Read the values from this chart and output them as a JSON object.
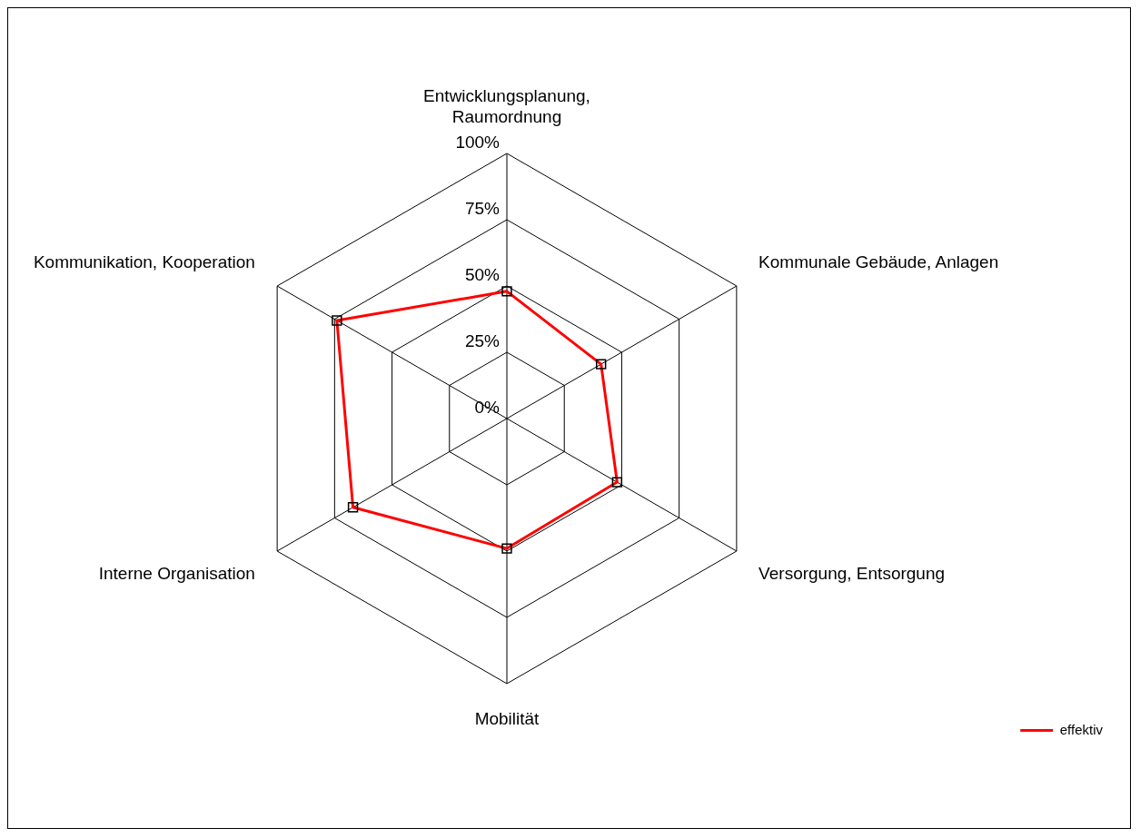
{
  "chart_data": {
    "type": "radar",
    "categories": [
      "Entwicklungsplanung,\nRaumordnung",
      "Kommunale Gebäude, Anlagen",
      "Versorgung, Entsorgung",
      "Mobilität",
      "Interne Organisation",
      "Kommunikation, Kooperation"
    ],
    "series": [
      {
        "name": "effektiv",
        "color": "#ff0000",
        "values": [
          48,
          41,
          48,
          49,
          67,
          74
        ]
      }
    ],
    "ylim": [
      0,
      100
    ],
    "yticks": [
      {
        "value": 0,
        "label": "0%"
      },
      {
        "value": 25,
        "label": "25%"
      },
      {
        "value": 50,
        "label": "50%"
      },
      {
        "value": 75,
        "label": "75%"
      },
      {
        "value": 100,
        "label": "100%"
      }
    ],
    "grid": true,
    "legend": "bottom right",
    "marker": "square",
    "line_style": "solid"
  }
}
